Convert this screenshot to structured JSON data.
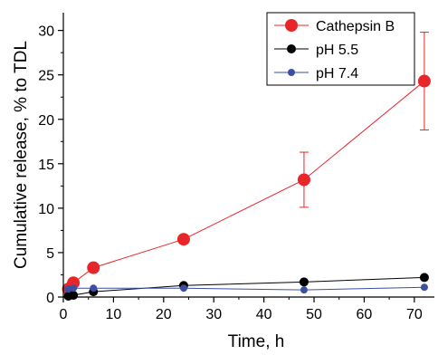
{
  "chart_data": {
    "type": "scatter",
    "xlabel": "Time, h",
    "ylabel": "Cumulative release, % to TDL",
    "xlim": [
      0,
      74
    ],
    "ylim": [
      0,
      32
    ],
    "xticks": [
      0,
      10,
      20,
      30,
      40,
      50,
      60,
      70
    ],
    "yticks": [
      0,
      5,
      10,
      15,
      20,
      25,
      30
    ],
    "grid": false,
    "legend_position": "top-right",
    "series": [
      {
        "name": "Cathepsin B",
        "color": "#e8262a",
        "marker": "large-circle",
        "x": [
          1,
          2,
          6,
          24,
          48,
          72
        ],
        "y": [
          0.9,
          1.6,
          3.3,
          6.5,
          13.2,
          24.3
        ],
        "error": [
          null,
          null,
          null,
          null,
          3.1,
          5.5
        ],
        "trend_line": true
      },
      {
        "name": "pH 5.5",
        "color": "#000000",
        "marker": "medium-circle",
        "x": [
          1,
          2,
          6,
          24,
          48,
          72
        ],
        "y": [
          0.1,
          0.2,
          0.6,
          1.3,
          1.7,
          2.2
        ],
        "trend_line": true
      },
      {
        "name": "pH 7.4",
        "color": "#3d4fa3",
        "marker": "small-circle",
        "x": [
          1,
          2,
          6,
          24,
          48,
          72
        ],
        "y": [
          0.9,
          1.0,
          1.0,
          1.0,
          0.8,
          1.1
        ],
        "trend_line": true
      }
    ]
  }
}
